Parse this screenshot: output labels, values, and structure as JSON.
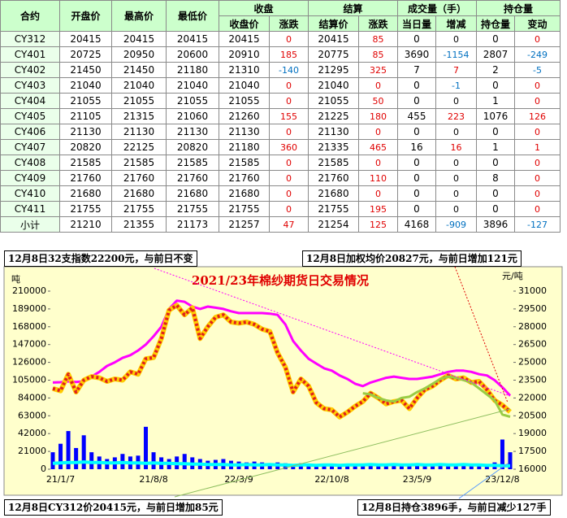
{
  "table": {
    "header_top": [
      "合约",
      "开盘价",
      "最高价",
      "最低价",
      "收盘",
      "结算",
      "成交量（手）",
      "持仓量"
    ],
    "header_sub": [
      "收盘价",
      "涨跌",
      "结算价",
      "涨跌",
      "当日量",
      "增减",
      "持仓量",
      "变动"
    ],
    "rows": [
      [
        "CY312",
        "20415",
        "20415",
        "20415",
        "20415",
        "0",
        "20415",
        "85",
        "0",
        "0",
        "0",
        "0"
      ],
      [
        "CY401",
        "20725",
        "20950",
        "20600",
        "20910",
        "185",
        "20775",
        "85",
        "3690",
        "-1154",
        "2807",
        "-249"
      ],
      [
        "CY402",
        "21450",
        "21450",
        "21180",
        "21310",
        "-140",
        "21295",
        "325",
        "7",
        "7",
        "2",
        "-5"
      ],
      [
        "CY403",
        "21040",
        "21040",
        "21040",
        "21040",
        "0",
        "21040",
        "0",
        "0",
        "-1",
        "0",
        "0"
      ],
      [
        "CY404",
        "21055",
        "21055",
        "21055",
        "21055",
        "0",
        "21055",
        "50",
        "0",
        "0",
        "1",
        "0"
      ],
      [
        "CY405",
        "21105",
        "21315",
        "21060",
        "21260",
        "155",
        "21225",
        "180",
        "455",
        "223",
        "1076",
        "126"
      ],
      [
        "CY406",
        "21130",
        "21130",
        "21130",
        "21130",
        "0",
        "21130",
        "0",
        "0",
        "0",
        "0",
        "0"
      ],
      [
        "CY407",
        "20820",
        "22125",
        "20820",
        "21180",
        "360",
        "21335",
        "465",
        "16",
        "16",
        "1",
        "1"
      ],
      [
        "CY408",
        "21585",
        "21585",
        "21585",
        "21585",
        "0",
        "21585",
        "0",
        "0",
        "0",
        "0",
        "0"
      ],
      [
        "CY409",
        "21760",
        "21760",
        "21760",
        "21760",
        "0",
        "21760",
        "110",
        "0",
        "0",
        "8",
        "0"
      ],
      [
        "CY410",
        "21680",
        "21680",
        "21680",
        "21680",
        "0",
        "21680",
        "0",
        "0",
        "0",
        "0",
        "0"
      ],
      [
        "CY411",
        "21755",
        "21755",
        "21755",
        "21755",
        "0",
        "21755",
        "195",
        "0",
        "0",
        "0",
        "0"
      ],
      [
        "小计",
        "21210",
        "21355",
        "21173",
        "21257",
        "47",
        "21254",
        "125",
        "4168",
        "-909",
        "3896",
        "-127"
      ]
    ]
  },
  "chart_data": {
    "type": "line",
    "title": "2021/23年棉纱期货日交易情况",
    "y_label": "吨",
    "y2_label": "元/吨",
    "annotations": [
      "12月8日32支指数22200元，与前日不变",
      "12月8日加权均价20827元，与前日增加121元",
      "12月8日CY312价20415元，与前日增加85元",
      "12月8日持仓3896手，与前日减少127手"
    ],
    "categories": [
      null,
      "21/1/7",
      null,
      null,
      null,
      null,
      null,
      null,
      null,
      null,
      null,
      null,
      null,
      "21/8/8",
      null,
      null,
      null,
      null,
      null,
      null,
      null,
      null,
      null,
      null,
      "22/3/9",
      null,
      null,
      null,
      null,
      null,
      null,
      null,
      null,
      null,
      null,
      null,
      "22/10/8",
      null,
      null,
      null,
      null,
      null,
      null,
      null,
      null,
      null,
      null,
      "23/5/9",
      null,
      null,
      null,
      null,
      null,
      null,
      null,
      null,
      null,
      null,
      "23/12/8",
      null
    ],
    "ylim": [
      0,
      210000
    ],
    "yticks": [
      0,
      21000,
      42000,
      63000,
      84000,
      105000,
      126000,
      147000,
      168000,
      189000,
      210000
    ],
    "y2lim": [
      16000,
      31000
    ],
    "y2ticks": [
      16000,
      17500,
      19000,
      20500,
      22000,
      23500,
      25000,
      26500,
      28000,
      29500,
      31000
    ],
    "series": [
      {
        "type": "bar",
        "color": "#0000ff",
        "values": [
          20000,
          30000,
          45000,
          25000,
          40000,
          20000,
          15000,
          12000,
          14000,
          18000,
          15000,
          16000,
          50000,
          20000,
          14000,
          12000,
          15000,
          18000,
          14000,
          12000,
          10000,
          11000,
          12000,
          10000,
          9000,
          8000,
          9000,
          8000,
          7000,
          8000,
          7000,
          6000,
          7000,
          6000,
          5000,
          6000,
          5000,
          5000,
          6000,
          5000,
          5000,
          6000,
          5000,
          5000,
          6000,
          5000,
          6000,
          5000,
          6000,
          5000,
          6000,
          5000,
          5000,
          6000,
          5000,
          6000,
          5000,
          8000,
          35000,
          20000
        ]
      },
      {
        "type": "line",
        "color": "#00ffff",
        "values": [
          7000,
          7500,
          8000,
          8000,
          8500,
          8000,
          8000,
          7500,
          7500,
          8000,
          7500,
          7500,
          7000,
          7500,
          7000,
          7000,
          6500,
          6500,
          6000,
          6000,
          5500,
          5500,
          5500,
          5000,
          5000,
          5500,
          5000,
          5000,
          5500,
          5000,
          5000,
          4500,
          5000,
          5000,
          4500,
          5000,
          5000,
          4500,
          5000,
          5000,
          5000,
          5500,
          5000,
          5000,
          5500,
          5000,
          5000,
          5500,
          5000,
          5000,
          5500,
          5000,
          5000,
          5500,
          5000,
          5000,
          4500,
          4500,
          4000,
          3896
        ]
      },
      {
        "type": "line",
        "axis": "y2",
        "color": "#ff00ff",
        "values": [
          23300,
          23330,
          23400,
          23350,
          23400,
          23800,
          24200,
          24700,
          25000,
          25380,
          25600,
          26000,
          26500,
          27200,
          28000,
          29500,
          30200,
          30100,
          29700,
          29500,
          29700,
          29600,
          29500,
          29300,
          29150,
          29150,
          29150,
          29150,
          29100,
          29000,
          28200,
          26800,
          26000,
          25300,
          24900,
          24500,
          24300,
          23900,
          23600,
          23200,
          23000,
          23300,
          23500,
          23700,
          23800,
          23700,
          23600,
          23600,
          23700,
          23800,
          24000,
          24200,
          24300,
          24300,
          24200,
          24000,
          23900,
          23500,
          22900,
          22200
        ]
      },
      {
        "type": "line",
        "axis": "y2",
        "color": "#e0201c",
        "values": [
          22800,
          22600,
          24000,
          22500,
          23500,
          23800,
          23700,
          23400,
          23600,
          23500,
          24200,
          24000,
          25300,
          25400,
          27000,
          29400,
          29800,
          29000,
          29600,
          27000,
          28000,
          28800,
          29000,
          28400,
          28300,
          28400,
          28200,
          27800,
          27600,
          25800,
          24600,
          22500,
          23600,
          23000,
          21600,
          21100,
          21000,
          20400,
          20800,
          21300,
          21700,
          22400,
          22000,
          21500,
          21700,
          21800,
          21100,
          22000,
          22700,
          23000,
          23500,
          23900,
          23600,
          23700,
          23300,
          23400,
          22700,
          21800,
          21400,
          20827
        ]
      },
      {
        "type": "line",
        "axis": "y2",
        "color": "#99cc44",
        "values": [
          null,
          null,
          null,
          null,
          null,
          null,
          null,
          null,
          null,
          null,
          null,
          null,
          null,
          null,
          null,
          null,
          null,
          null,
          null,
          null,
          null,
          null,
          null,
          null,
          null,
          null,
          null,
          null,
          null,
          null,
          null,
          null,
          null,
          null,
          null,
          null,
          null,
          null,
          null,
          null,
          22400,
          22300,
          22000,
          21800,
          21700,
          22000,
          22100,
          22500,
          22800,
          23200,
          23600,
          23800,
          23700,
          23500,
          23300,
          22800,
          22300,
          21800,
          20600,
          20415
        ]
      }
    ]
  }
}
